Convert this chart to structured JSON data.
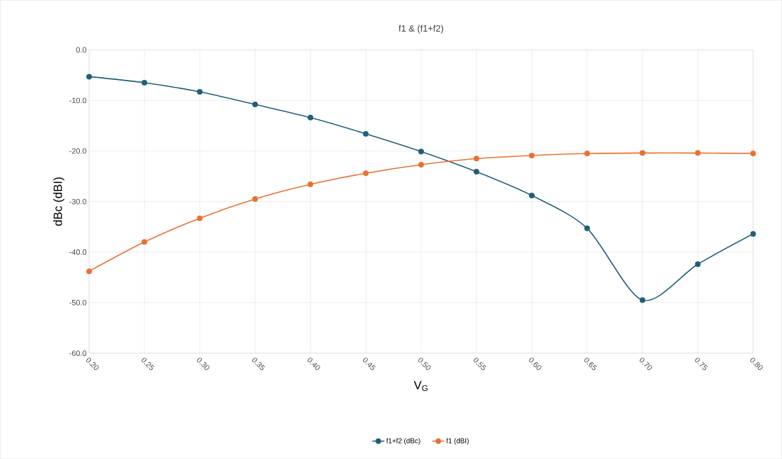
{
  "chart_data": {
    "type": "line",
    "title": "f1 & (f1+f2)",
    "xlabel": "V$_{G}$",
    "ylabel": "dBc (dBI)",
    "x": [
      0.2,
      0.25,
      0.3,
      0.35,
      0.4,
      0.45,
      0.5,
      0.55,
      0.6,
      0.65,
      0.7,
      0.75,
      0.8
    ],
    "series": [
      {
        "name": "f1+f2 (dBc)",
        "color": "#215f7a",
        "values": [
          -5.3,
          -6.5,
          -8.3,
          -10.8,
          -13.4,
          -16.6,
          -20.1,
          -24.1,
          -28.8,
          -35.3,
          -49.5,
          -42.4,
          -36.4
        ]
      },
      {
        "name": "f1 (dBI)",
        "color": "#e97132",
        "values": [
          -43.8,
          -38.0,
          -33.3,
          -29.5,
          -26.6,
          -24.4,
          -22.7,
          -21.5,
          -20.9,
          -20.5,
          -20.4,
          -20.4,
          -20.5
        ]
      }
    ],
    "xlim": [
      0.2,
      0.8
    ],
    "xticks": [
      {
        "value": 0.2,
        "label": "0.20"
      },
      {
        "value": 0.25,
        "label": "0.25"
      },
      {
        "value": 0.3,
        "label": "0.30"
      },
      {
        "value": 0.35,
        "label": "0.35"
      },
      {
        "value": 0.4,
        "label": "0.40"
      },
      {
        "value": 0.45,
        "label": "0.45"
      },
      {
        "value": 0.5,
        "label": "0.50"
      },
      {
        "value": 0.55,
        "label": "0.55"
      },
      {
        "value": 0.6,
        "label": "0.60"
      },
      {
        "value": 0.65,
        "label": "0.65"
      },
      {
        "value": 0.7,
        "label": "0.70"
      },
      {
        "value": 0.75,
        "label": "0.75"
      },
      {
        "value": 0.8,
        "label": "0.80"
      }
    ],
    "ylim": [
      -60,
      0
    ],
    "yticks": [
      {
        "value": -60,
        "label": "-60.0"
      },
      {
        "value": -50,
        "label": "-50.0"
      },
      {
        "value": -40,
        "label": "-40.0"
      },
      {
        "value": -30,
        "label": "-30.0"
      },
      {
        "value": -20,
        "label": "-20.0"
      },
      {
        "value": -10,
        "label": "-10.0"
      },
      {
        "value": 0,
        "label": "0.0"
      }
    ],
    "grid": true,
    "legend": "bottom",
    "marker": "circle",
    "line_style": "solid"
  }
}
